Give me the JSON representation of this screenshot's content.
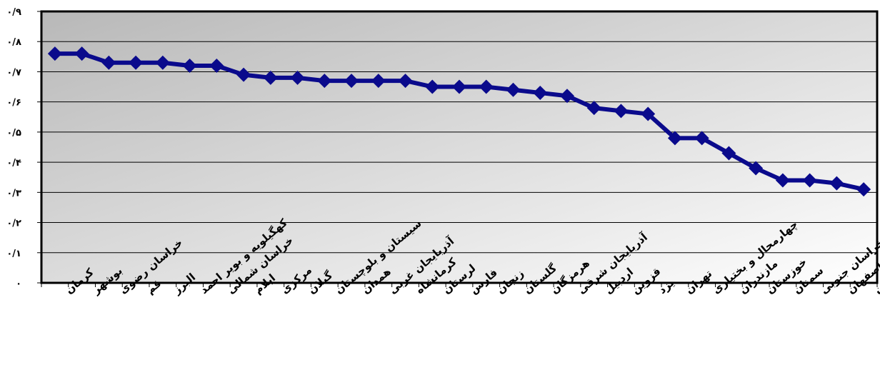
{
  "chart_data": {
    "type": "line",
    "title": "",
    "xlabel": "",
    "ylabel": "",
    "ylim": [
      0,
      0.9
    ],
    "ytick_labels": [
      "۰",
      "۰/۱",
      "۰/۲",
      "۰/۳",
      "۰/۴",
      "۰/۵",
      "۰/۶",
      "۰/۷",
      "۰/۸",
      "۰/۹"
    ],
    "grid": true,
    "legend": "none",
    "colors": {
      "line": "#0a0a8c",
      "marker": "#0a0a8c",
      "plot_bg_top": "#bdbdbd",
      "plot_bg_bottom": "#ffffff",
      "grid": "#000000"
    },
    "categories": [
      "کرمان",
      "بوشهر",
      "خراسان رضوی",
      "قم",
      "البرز",
      "کهگیلویه و بویر احمد",
      "خراسان شمالی",
      "ایلام",
      "مرکزی",
      "گیلان",
      "سیستان و بلوچستان",
      "همدان",
      "آذربایجان غربی",
      "کرمانشاه",
      "لرستان",
      "فارس",
      "زنجان",
      "گلستان",
      "هرمزگان",
      "آذربایجان شرقی",
      "اردبیل",
      "قزوین",
      "یزد",
      "تهران",
      "چهارمحال و بختیاری",
      "مازندران",
      "خوزستان",
      "سمنان",
      "خراسان جنوبی",
      "اصفهان",
      "کردستان"
    ],
    "series": [
      {
        "values": [
          0.76,
          0.76,
          0.73,
          0.73,
          0.73,
          0.72,
          0.72,
          0.69,
          0.68,
          0.68,
          0.67,
          0.67,
          0.67,
          0.67,
          0.65,
          0.65,
          0.65,
          0.64,
          0.63,
          0.62,
          0.58,
          0.57,
          0.56,
          0.48,
          0.48,
          0.43,
          0.38,
          0.34,
          0.34,
          0.33,
          0.31
        ]
      }
    ]
  }
}
